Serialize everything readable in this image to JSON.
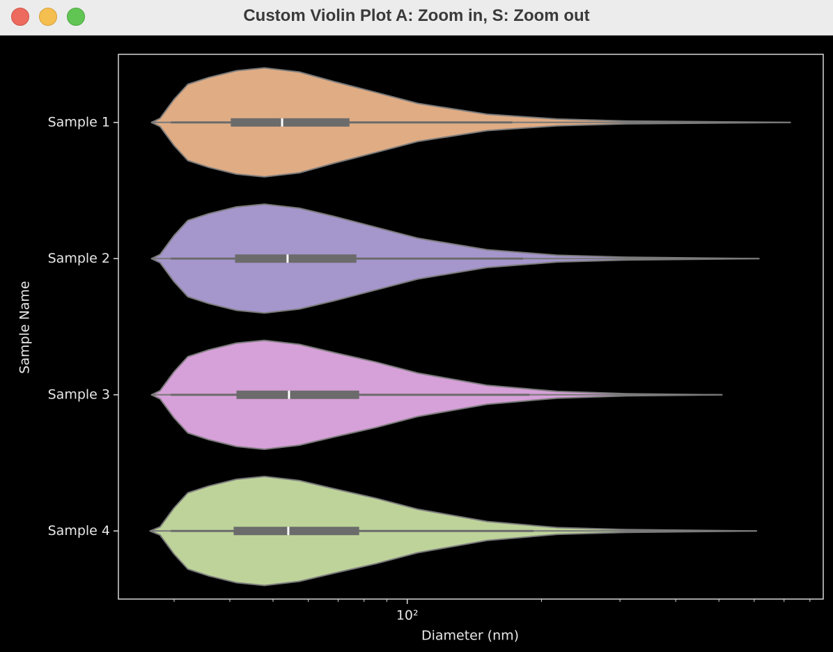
{
  "window_title": "Custom Violin Plot A: Zoom in, S: Zoom out",
  "chart_data": {
    "type": "violin",
    "orientation": "horizontal",
    "xlabel": "Diameter (nm)",
    "ylabel": "Sample Name",
    "xscale": "log",
    "xlim": [
      22.5,
      857
    ],
    "xticks": [
      {
        "value": 100,
        "label": "10²"
      }
    ],
    "xminor_ticks": [
      30,
      40,
      50,
      60,
      70,
      80,
      90,
      200,
      300,
      400,
      500,
      600,
      700,
      800
    ],
    "categories": [
      "Sample 1",
      "Sample 2",
      "Sample 3",
      "Sample 4"
    ],
    "series": [
      {
        "name": "Sample 1",
        "color": "#e0ac84",
        "density_x": [
          26.7,
          27.9,
          30.0,
          32.2,
          35.9,
          41.4,
          47.8,
          57.3,
          68.5,
          85.1,
          105.5,
          151,
          217,
          311,
          723
        ],
        "density": [
          0,
          0.03,
          0.17,
          0.28,
          0.33,
          0.38,
          0.4,
          0.37,
          0.3,
          0.22,
          0.14,
          0.06,
          0.025,
          0.01,
          0
        ],
        "whisker_low": 29.5,
        "q1": 40.2,
        "median": 52.4,
        "q3": 74.2,
        "whisker_high": 172
      },
      {
        "name": "Sample 2",
        "color": "#a596cc",
        "density_x": [
          26.7,
          27.9,
          30.0,
          32.2,
          35.9,
          41.4,
          47.8,
          57.3,
          68.5,
          85.1,
          105.5,
          151,
          217,
          311,
          615
        ],
        "density": [
          0,
          0.03,
          0.17,
          0.28,
          0.33,
          0.38,
          0.4,
          0.37,
          0.31,
          0.23,
          0.15,
          0.065,
          0.025,
          0.01,
          0
        ],
        "whisker_low": 29.5,
        "q1": 41.1,
        "median": 53.9,
        "q3": 76.9,
        "whisker_high": 182
      },
      {
        "name": "Sample 3",
        "color": "#d6a0d8",
        "density_x": [
          26.7,
          27.9,
          30.0,
          32.2,
          35.9,
          41.4,
          47.8,
          57.3,
          68.5,
          85.1,
          105.5,
          151,
          217,
          311,
          508
        ],
        "density": [
          0,
          0.03,
          0.17,
          0.28,
          0.33,
          0.38,
          0.4,
          0.37,
          0.31,
          0.24,
          0.16,
          0.07,
          0.025,
          0.008,
          0
        ],
        "whisker_low": 29.5,
        "q1": 41.4,
        "median": 54.3,
        "q3": 78.0,
        "whisker_high": 188
      },
      {
        "name": "Sample 4",
        "color": "#bdd39a",
        "density_x": [
          26.5,
          27.9,
          30.0,
          32.2,
          35.9,
          41.4,
          47.8,
          57.3,
          68.5,
          85.1,
          105.5,
          151,
          217,
          311,
          607
        ],
        "density": [
          0,
          0.03,
          0.17,
          0.28,
          0.33,
          0.38,
          0.4,
          0.37,
          0.31,
          0.24,
          0.16,
          0.07,
          0.025,
          0.01,
          0
        ],
        "whisker_low": 29.5,
        "q1": 40.8,
        "median": 54.1,
        "q3": 78.0,
        "whisker_high": 192
      }
    ]
  }
}
